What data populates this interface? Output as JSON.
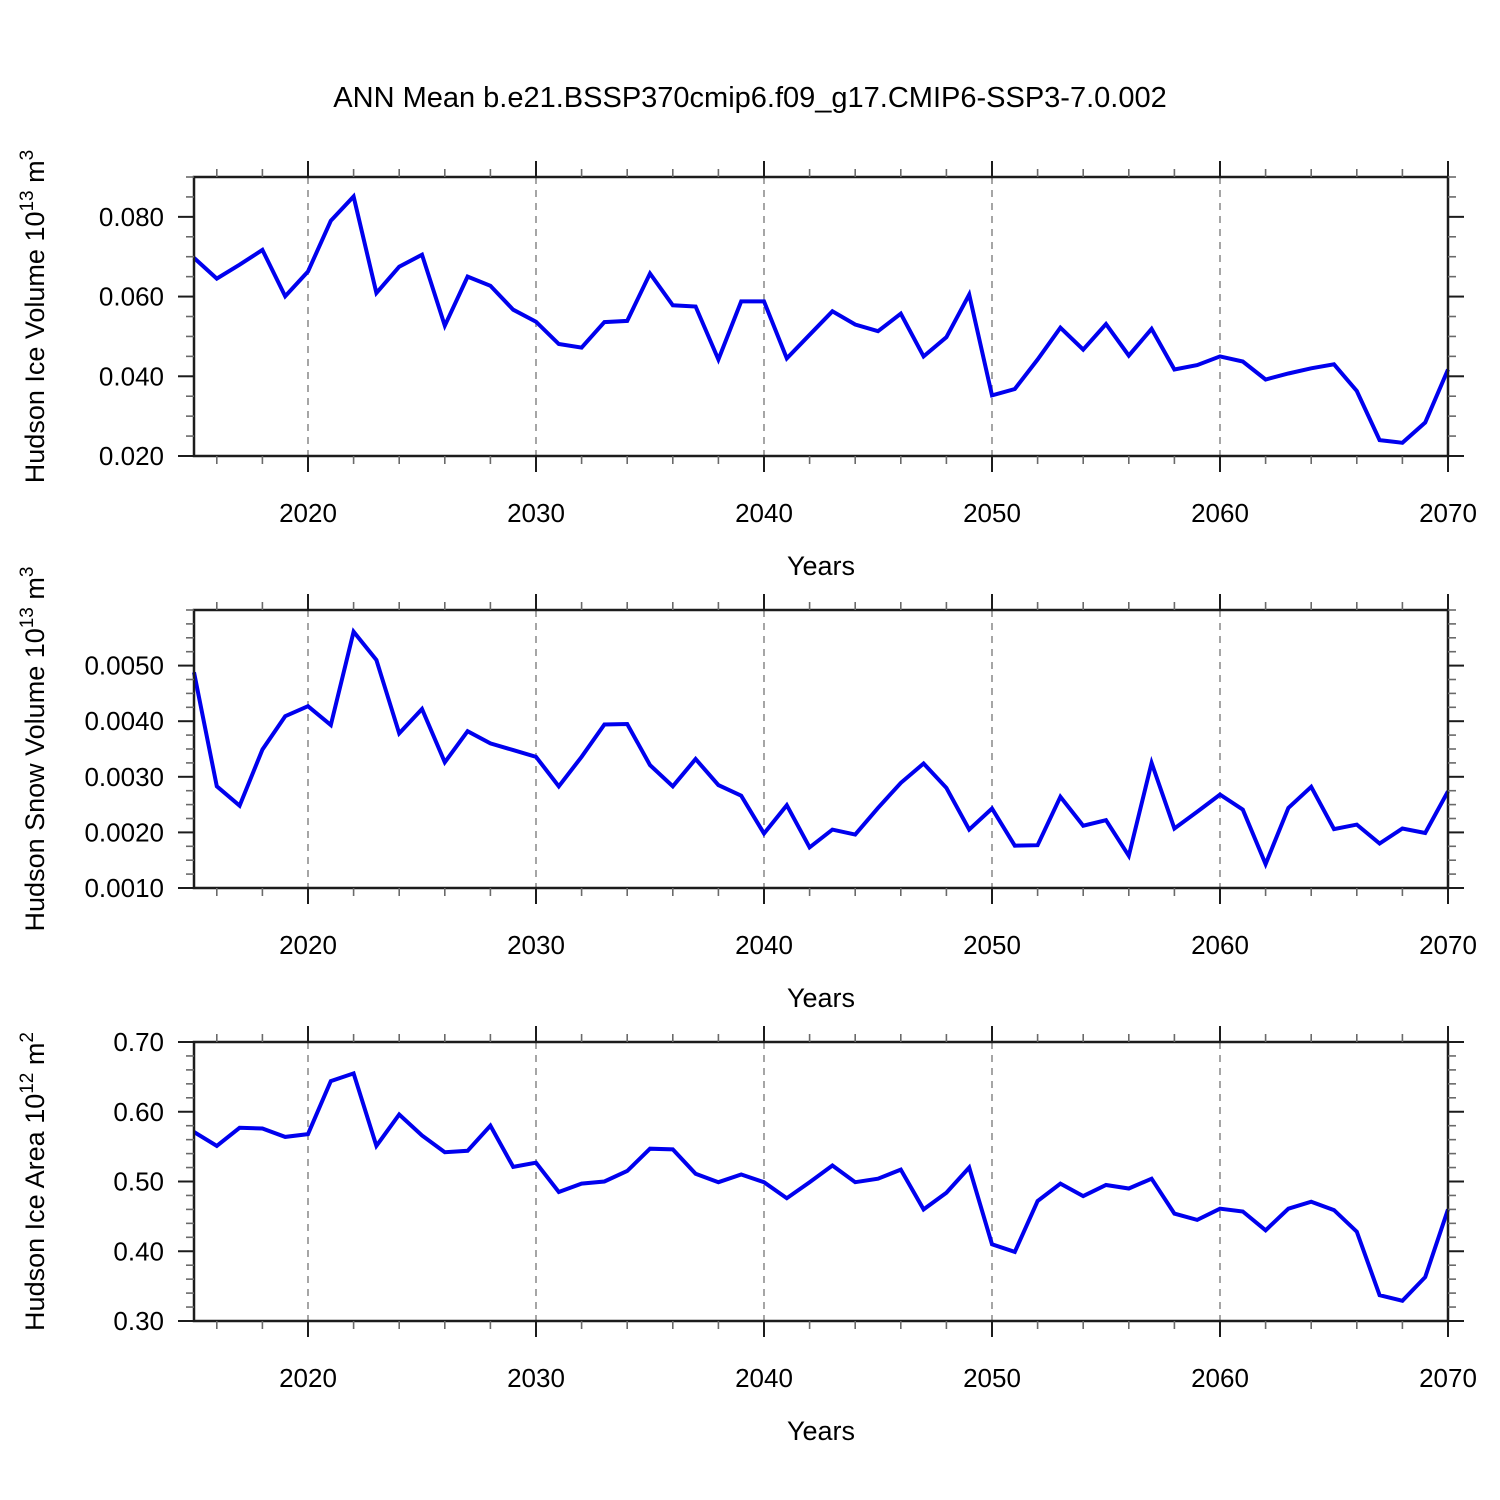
{
  "title": "ANN Mean b.e21.BSSP370cmip6.f09_g17.CMIP6-SSP3-7.0.002",
  "accent_color": "#0000ee",
  "background_color": "#ffffff",
  "gridline_color": "#8f8f8f",
  "frame_color": "#1c1c1c",
  "chart_data": [
    {
      "type": "line",
      "name": "hudson-ice-volume",
      "ylabel_segments": [
        {
          "t": "Hudson Ice Volume 10"
        },
        {
          "t": "13",
          "sup": true
        },
        {
          "t": " m"
        },
        {
          "t": "3",
          "sup": true
        }
      ],
      "xlabel": "Years",
      "xlim": [
        2015,
        2070
      ],
      "ylim": [
        0.02,
        0.09
      ],
      "x_major": {
        "values": [
          2020,
          2030,
          2040,
          2050,
          2060,
          2070
        ],
        "labels": [
          "2020",
          "2030",
          "2040",
          "2050",
          "2060",
          "2070"
        ]
      },
      "x_minor_step": 2,
      "gridline_years": [
        2020,
        2030,
        2040,
        2050,
        2060
      ],
      "y_major": {
        "values": [
          0.02,
          0.04,
          0.06,
          0.08
        ],
        "labels": [
          "0.020",
          "0.040",
          "0.060",
          "0.080"
        ]
      },
      "y_minor_step": 0.005,
      "grid": false,
      "legend": null,
      "line_color": "#0000ee",
      "x": [
        2015,
        2016,
        2017,
        2018,
        2019,
        2020,
        2021,
        2022,
        2023,
        2024,
        2025,
        2026,
        2027,
        2028,
        2029,
        2030,
        2031,
        2032,
        2033,
        2034,
        2035,
        2036,
        2037,
        2038,
        2039,
        2040,
        2041,
        2042,
        2043,
        2044,
        2045,
        2046,
        2047,
        2048,
        2049,
        2050,
        2051,
        2052,
        2053,
        2054,
        2055,
        2056,
        2057,
        2058,
        2059,
        2060,
        2061,
        2062,
        2063,
        2064,
        2065,
        2066,
        2067,
        2068,
        2069,
        2070
      ],
      "values": [
        0.0697,
        0.0645,
        0.068,
        0.0717,
        0.0601,
        0.0663,
        0.079,
        0.0851,
        0.0609,
        0.0675,
        0.0705,
        0.0527,
        0.065,
        0.0627,
        0.0567,
        0.0537,
        0.0481,
        0.0472,
        0.0536,
        0.0539,
        0.0658,
        0.0578,
        0.0575,
        0.0442,
        0.0588,
        0.0588,
        0.0445,
        0.0504,
        0.0563,
        0.053,
        0.0513,
        0.0557,
        0.045,
        0.0498,
        0.0605,
        0.0352,
        0.0368,
        0.0442,
        0.0522,
        0.0467,
        0.0531,
        0.0452,
        0.0519,
        0.0417,
        0.0428,
        0.045,
        0.0437,
        0.0392,
        0.0407,
        0.042,
        0.043,
        0.0363,
        0.024,
        0.0233,
        0.0284,
        0.0417
      ]
    },
    {
      "type": "line",
      "name": "hudson-snow-volume",
      "ylabel_segments": [
        {
          "t": "Hudson Snow Volume 10"
        },
        {
          "t": "13",
          "sup": true
        },
        {
          "t": " m"
        },
        {
          "t": "3",
          "sup": true
        }
      ],
      "xlabel": "Years",
      "xlim": [
        2015,
        2070
      ],
      "ylim": [
        0.001,
        0.006
      ],
      "x_major": {
        "values": [
          2020,
          2030,
          2040,
          2050,
          2060,
          2070
        ],
        "labels": [
          "2020",
          "2030",
          "2040",
          "2050",
          "2060",
          "2070"
        ]
      },
      "x_minor_step": 2,
      "gridline_years": [
        2020,
        2030,
        2040,
        2050,
        2060
      ],
      "y_major": {
        "values": [
          0.001,
          0.002,
          0.003,
          0.004,
          0.005
        ],
        "labels": [
          "0.0010",
          "0.0020",
          "0.0030",
          "0.0040",
          "0.0050"
        ]
      },
      "y_minor_step": 0.00025,
      "grid": false,
      "legend": null,
      "line_color": "#0000ee",
      "x": [
        2015,
        2016,
        2017,
        2018,
        2019,
        2020,
        2021,
        2022,
        2023,
        2024,
        2025,
        2026,
        2027,
        2028,
        2029,
        2030,
        2031,
        2032,
        2033,
        2034,
        2035,
        2036,
        2037,
        2038,
        2039,
        2040,
        2041,
        2042,
        2043,
        2044,
        2045,
        2046,
        2047,
        2048,
        2049,
        2050,
        2051,
        2052,
        2053,
        2054,
        2055,
        2056,
        2057,
        2058,
        2059,
        2060,
        2061,
        2062,
        2063,
        2064,
        2065,
        2066,
        2067,
        2068,
        2069,
        2070
      ],
      "values": [
        0.00488,
        0.00283,
        0.00248,
        0.00349,
        0.00409,
        0.00427,
        0.00393,
        0.00561,
        0.0051,
        0.00378,
        0.00422,
        0.00326,
        0.00382,
        0.0036,
        0.00348,
        0.00336,
        0.00283,
        0.00336,
        0.00394,
        0.00395,
        0.00321,
        0.00283,
        0.00332,
        0.00285,
        0.00266,
        0.00198,
        0.00249,
        0.00173,
        0.00205,
        0.00196,
        0.00244,
        0.00289,
        0.00324,
        0.0028,
        0.00205,
        0.00243,
        0.00176,
        0.00177,
        0.00264,
        0.00212,
        0.00222,
        0.00158,
        0.00325,
        0.00207,
        0.00237,
        0.00268,
        0.00241,
        0.00143,
        0.00244,
        0.00282,
        0.00206,
        0.00214,
        0.0018,
        0.00207,
        0.00199,
        0.00274
      ]
    },
    {
      "type": "line",
      "name": "hudson-ice-area",
      "ylabel_segments": [
        {
          "t": "Hudson Ice Area 10"
        },
        {
          "t": "12",
          "sup": true
        },
        {
          "t": " m"
        },
        {
          "t": "2",
          "sup": true
        }
      ],
      "xlabel": "Years",
      "xlim": [
        2015,
        2070
      ],
      "ylim": [
        0.3,
        0.7
      ],
      "x_major": {
        "values": [
          2020,
          2030,
          2040,
          2050,
          2060,
          2070
        ],
        "labels": [
          "2020",
          "2030",
          "2040",
          "2050",
          "2060",
          "2070"
        ]
      },
      "x_minor_step": 2,
      "gridline_years": [
        2020,
        2030,
        2040,
        2050,
        2060
      ],
      "y_major": {
        "values": [
          0.3,
          0.4,
          0.5,
          0.6,
          0.7
        ],
        "labels": [
          "0.30",
          "0.40",
          "0.50",
          "0.60",
          "0.70"
        ]
      },
      "y_minor_step": 0.02,
      "grid": false,
      "legend": null,
      "line_color": "#0000ee",
      "x": [
        2015,
        2016,
        2017,
        2018,
        2019,
        2020,
        2021,
        2022,
        2023,
        2024,
        2025,
        2026,
        2027,
        2028,
        2029,
        2030,
        2031,
        2032,
        2033,
        2034,
        2035,
        2036,
        2037,
        2038,
        2039,
        2040,
        2041,
        2042,
        2043,
        2044,
        2045,
        2046,
        2047,
        2048,
        2049,
        2050,
        2051,
        2052,
        2053,
        2054,
        2055,
        2056,
        2057,
        2058,
        2059,
        2060,
        2061,
        2062,
        2063,
        2064,
        2065,
        2066,
        2067,
        2068,
        2069,
        2070
      ],
      "values": [
        0.571,
        0.551,
        0.577,
        0.576,
        0.564,
        0.568,
        0.644,
        0.655,
        0.551,
        0.596,
        0.566,
        0.542,
        0.544,
        0.58,
        0.521,
        0.527,
        0.485,
        0.497,
        0.5,
        0.515,
        0.547,
        0.546,
        0.511,
        0.499,
        0.51,
        0.499,
        0.476,
        0.499,
        0.523,
        0.499,
        0.504,
        0.517,
        0.46,
        0.484,
        0.52,
        0.41,
        0.399,
        0.472,
        0.497,
        0.479,
        0.495,
        0.49,
        0.504,
        0.454,
        0.445,
        0.461,
        0.457,
        0.43,
        0.461,
        0.471,
        0.459,
        0.428,
        0.337,
        0.329,
        0.363,
        0.46
      ]
    }
  ]
}
